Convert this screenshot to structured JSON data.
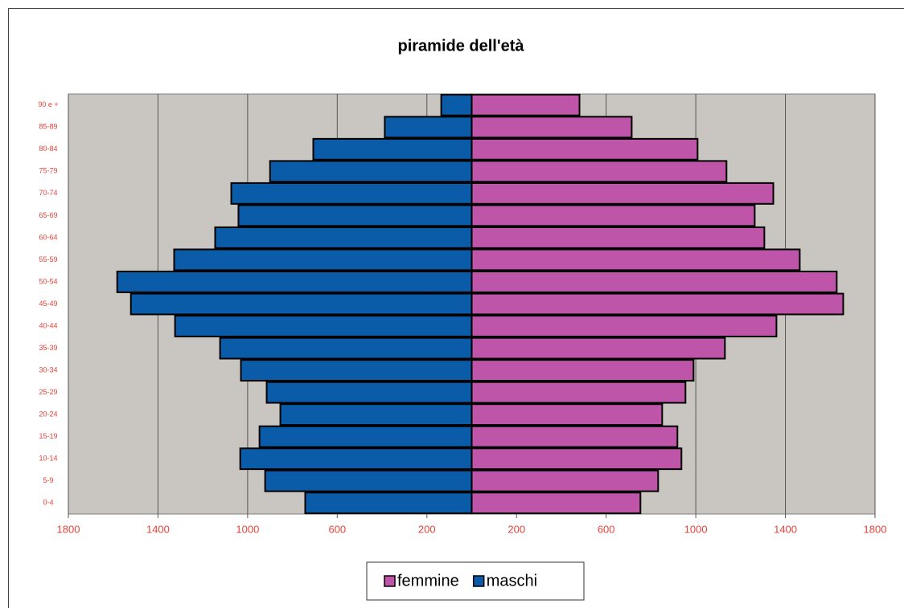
{
  "chart_data": {
    "type": "pyramid",
    "title": "piramide dell'età",
    "categories": [
      "0-4",
      "5-9",
      "10-14",
      "15-19",
      "20-24",
      "25-29",
      "30-34",
      "35-39",
      "40-44",
      "45-49",
      "50-54",
      "55-59",
      "60-64",
      "65-69",
      "70-74",
      "75-79",
      "80-84",
      "85-89",
      "90 e +"
    ],
    "series": [
      {
        "name": "femmine",
        "color": "#bf55a8",
        "values": [
          753,
          832,
          936,
          918,
          850,
          954,
          990,
          1130,
          1360,
          1658,
          1629,
          1464,
          1306,
          1263,
          1346,
          1137,
          1008,
          714,
          481
        ]
      },
      {
        "name": "maschi",
        "color": "#0b5ca8",
        "values": [
          -743,
          -922,
          -1033,
          -947,
          -854,
          -915,
          -1030,
          -1123,
          -1324,
          -1521,
          -1582,
          -1328,
          -1145,
          -1041,
          -1073,
          -900,
          -707,
          -388,
          -136
        ]
      }
    ],
    "xlim": [
      -1800,
      1800
    ],
    "xticks": [
      {
        "value": -1800,
        "label": "1800"
      },
      {
        "value": -1400,
        "label": "1400"
      },
      {
        "value": -1000,
        "label": "1000"
      },
      {
        "value": -600,
        "label": "600"
      },
      {
        "value": -200,
        "label": "200"
      },
      200,
      600,
      1000,
      1400,
      1800
    ],
    "grid": true,
    "legend": "bottom"
  }
}
